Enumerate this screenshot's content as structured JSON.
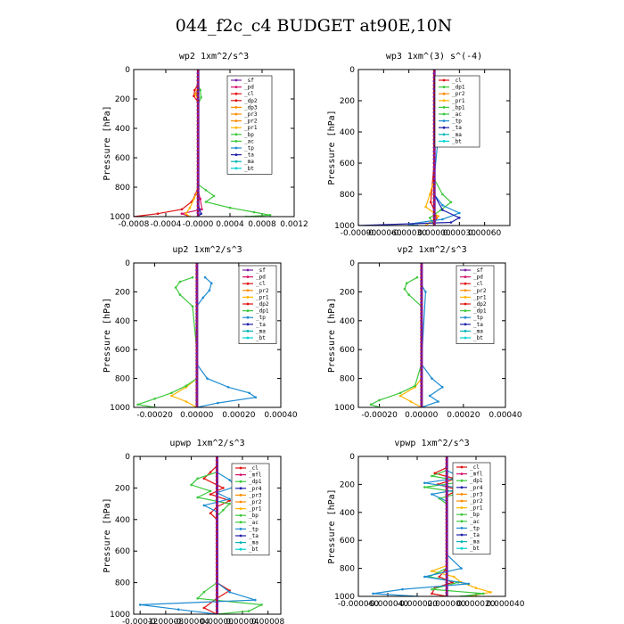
{
  "figure": {
    "title": "044_f2c_c4  BUDGET at90E,10N"
  },
  "chart_data": [
    {
      "type": "line",
      "title": "wp2   1xm^2/s^3",
      "ylabel": "Pressure [hPa]",
      "xlim": [
        -0.0008,
        0.0012
      ],
      "xticks": [
        "-0.0008",
        "-0.0004",
        "-0.0000",
        "0.0004",
        "0.0008",
        "0.0012"
      ],
      "ylim": [
        1000,
        0
      ],
      "yticks": [
        "0",
        "200",
        "400",
        "600",
        "800",
        "1000"
      ],
      "legend": [
        "_sf",
        "_pd",
        "_cl",
        "_dp2",
        "_dp3",
        "_pr3",
        "_pr2",
        "_pr1",
        "_bp",
        "_ac",
        "_tp",
        "_ta",
        "_ma",
        "_bt"
      ],
      "series": [
        {
          "label": "_pd",
          "color": "#d4146a",
          "p": [
            120,
            160,
            200,
            600,
            820,
            880,
            950,
            980,
            1000
          ],
          "v": [
            0,
            -2e-05,
            0,
            0,
            0,
            3e-05,
            5e-05,
            -0.0002,
            -0.0001
          ]
        },
        {
          "label": "_cl",
          "color": "#e01010",
          "p": [
            100,
            140,
            180,
            220,
            800,
            850,
            900,
            950,
            980,
            1000
          ],
          "v": [
            0,
            -4e-05,
            -5e-05,
            0,
            0,
            -3e-05,
            -8e-05,
            -0.0002,
            -0.0005,
            -0.0008
          ]
        },
        {
          "label": "_pr1",
          "color": "#ffb400",
          "p": [
            120,
            170,
            200,
            820,
            880,
            940,
            980,
            1000
          ],
          "v": [
            0,
            -3e-05,
            0,
            0,
            -5e-05,
            -0.0001,
            -0.00015,
            -0.0001
          ]
        },
        {
          "label": "_bp",
          "color": "#3cc83c",
          "p": [
            100,
            140,
            190,
            240,
            780,
            820,
            860,
            900,
            940,
            970,
            990,
            1000
          ],
          "v": [
            0,
            3e-05,
            4e-05,
            0,
            0,
            0.0001,
            0.0002,
            0.0001,
            0.0004,
            0.0007,
            0.0009,
            0.0006
          ]
        },
        {
          "label": "_ta",
          "color": "#1f1fa8",
          "p": [
            900,
            950,
            980,
            1000
          ],
          "v": [
            0,
            2e-05,
            4e-05,
            0
          ]
        }
      ]
    },
    {
      "type": "line",
      "title": "wp3   1xm^(3) s^(-4)",
      "ylabel": "Pressure [hPa]",
      "xlim": [
        -0.0009,
        0.0009
      ],
      "xticks": [
        "-0.00090",
        "-0.00060",
        "-0.00030",
        "0.00000",
        "0.00030",
        "0.00060"
      ],
      "ylim": [
        1000,
        0
      ],
      "yticks": [
        "0",
        "200",
        "400",
        "600",
        "800",
        "1000"
      ],
      "legend": [
        "_cl",
        "_dp1",
        "_pr2",
        "_pr1",
        "_bp1",
        "_ac",
        "_tp",
        "_ta",
        "_ma",
        "_bt"
      ],
      "series": [
        {
          "label": "_cl",
          "color": "#e01010",
          "p": [
            100,
            600,
            850,
            900,
            950,
            1000
          ],
          "v": [
            0,
            0,
            -4e-05,
            0,
            3e-05,
            0
          ]
        },
        {
          "label": "_pr1",
          "color": "#ffb400",
          "p": [
            700,
            800,
            880,
            940,
            1000
          ],
          "v": [
            0,
            -5e-05,
            -0.0001,
            5e-05,
            -0.0001
          ]
        },
        {
          "label": "_bp1",
          "color": "#3cc83c",
          "p": [
            120,
            160,
            200,
            700,
            800,
            850,
            900,
            950,
            1000
          ],
          "v": [
            0,
            4e-05,
            0,
            0,
            0.0001,
            0.0002,
            8e-05,
            -5e-05,
            0
          ]
        },
        {
          "label": "_tp",
          "color": "#1e8cd2",
          "p": [
            120,
            150,
            700,
            800,
            870,
            920,
            960,
            990,
            1000
          ],
          "v": [
            0,
            0.0001,
            0,
            0,
            0.0001,
            0.0003,
            0.0001,
            -0.0003,
            -0.0002
          ]
        },
        {
          "label": "_ta",
          "color": "#1f1fa8",
          "p": [
            800,
            900,
            950,
            980,
            1000
          ],
          "v": [
            0,
            0.0001,
            0.0003,
            0.0002,
            -0.0009
          ]
        }
      ]
    },
    {
      "type": "line",
      "title": "up2   1xm^2/s^3",
      "ylabel": "Pressure [hPa]",
      "xlim": [
        -0.0003,
        0.0004
      ],
      "xticks": [
        "-0.00020",
        "0.00000",
        "0.00020",
        "0.00040"
      ],
      "ylim": [
        1000,
        0
      ],
      "yticks": [
        "0",
        "200",
        "400",
        "600",
        "800",
        "1000"
      ],
      "legend": [
        "_sf",
        "_pd",
        "_cl",
        "_pr2",
        "_pr1",
        "_dp2",
        "_dp1",
        "_tp",
        "_ta",
        "_ma",
        "_bt"
      ],
      "series": [
        {
          "label": "_pd",
          "color": "#d4146a",
          "p": [
            100,
            1000
          ],
          "v": [
            0,
            0
          ]
        },
        {
          "label": "_pr1",
          "color": "#ffb400",
          "p": [
            800,
            860,
            920,
            960,
            1000
          ],
          "v": [
            0,
            -5e-05,
            -0.00012,
            -5e-05,
            0
          ]
        },
        {
          "label": "_dp2",
          "color": "#3cc83c",
          "p": [
            100,
            130,
            170,
            220,
            300,
            600,
            800,
            850,
            900,
            940,
            980,
            1000
          ],
          "v": [
            -2e-05,
            -8e-05,
            -0.0001,
            -8e-05,
            -2e-05,
            0,
            0,
            -5e-05,
            -0.00012,
            -0.0002,
            -0.00028,
            -0.0002
          ]
        },
        {
          "label": "_tp",
          "color": "#1e8cd2",
          "p": [
            100,
            140,
            190,
            240,
            300,
            700,
            800,
            860,
            900,
            930,
            970,
            1000
          ],
          "v": [
            4e-05,
            7e-05,
            6e-05,
            3e-05,
            0,
            0,
            5e-05,
            0.00015,
            0.00025,
            0.00028,
            0.0001,
            0
          ]
        },
        {
          "label": "_ma",
          "color": "#00b4b4",
          "p": [
            900,
            1000
          ],
          "v": [
            0,
            0
          ]
        }
      ]
    },
    {
      "type": "line",
      "title": "vp2   1xm^2/s^3",
      "ylabel": "Pressure [hPa]",
      "xlim": [
        -0.0003,
        0.0004
      ],
      "xticks": [
        "-0.00020",
        "0.00000",
        "0.00020",
        "0.00040"
      ],
      "ylim": [
        1000,
        0
      ],
      "yticks": [
        "0",
        "200",
        "400",
        "600",
        "800",
        "1000"
      ],
      "legend": [
        "_sf",
        "_pd",
        "_cl",
        "_pr2",
        "_pr1",
        "_dp2",
        "_dp1",
        "_tp",
        "_ta",
        "_ma",
        "_bt"
      ],
      "series": [
        {
          "label": "_pd",
          "color": "#d4146a",
          "p": [
            100,
            1000
          ],
          "v": [
            0,
            0
          ]
        },
        {
          "label": "_pr1",
          "color": "#ffb400",
          "p": [
            800,
            860,
            920,
            960,
            1000
          ],
          "v": [
            0,
            -3e-05,
            -0.0001,
            -5e-05,
            0
          ]
        },
        {
          "label": "_dp2",
          "color": "#3cc83c",
          "p": [
            100,
            140,
            180,
            220,
            300,
            700,
            850,
            900,
            950,
            980,
            1000
          ],
          "v": [
            -2e-05,
            -7e-05,
            -8e-05,
            -6e-05,
            0,
            0,
            -3e-05,
            -0.0001,
            -0.0002,
            -0.00024,
            -0.0002
          ]
        },
        {
          "label": "_tp",
          "color": "#1e8cd2",
          "p": [
            150,
            200,
            700,
            800,
            860,
            920,
            960,
            1000
          ],
          "v": [
            0,
            2e-05,
            0,
            5e-05,
            0.0001,
            4e-05,
            8e-05,
            0
          ]
        }
      ]
    },
    {
      "type": "line",
      "title": "upwp   1xm^2/s^3",
      "ylabel": "Pressure [hPa]",
      "xlim": [
        -0.00013,
        0.0001
      ],
      "xticks": [
        "-0.00012",
        "-0.00008",
        "-0.00004",
        "0.00000",
        "0.00004",
        "0.00008"
      ],
      "ylim": [
        1000,
        0
      ],
      "yticks": [
        "0",
        "200",
        "400",
        "600",
        "800",
        "1000"
      ],
      "legend": [
        "_cl",
        "_mfl",
        "_dp1",
        "_pr4",
        "_pr3",
        "_pr2",
        "_pr1",
        "_bp",
        "_ac",
        "_tp",
        "_ta",
        "_ma",
        "_bt"
      ],
      "series": [
        {
          "label": "_cl",
          "color": "#e01010",
          "p": [
            60,
            100,
            140,
            200,
            240,
            280,
            320,
            360,
            400,
            800,
            850,
            900,
            960,
            1000
          ],
          "v": [
            0,
            -1e-05,
            -2e-05,
            1e-05,
            -1e-05,
            2e-05,
            0,
            -1e-05,
            0,
            0,
            2e-05,
            0,
            -2e-05,
            0
          ]
        },
        {
          "label": "_dp1",
          "color": "#1f1fa8",
          "p": [
            60,
            400,
            700,
            1000
          ],
          "v": [
            0,
            0,
            0,
            0
          ]
        },
        {
          "label": "_bp",
          "color": "#3cc83c",
          "p": [
            100,
            140,
            180,
            220,
            260,
            300,
            340,
            380,
            800,
            860,
            900,
            940,
            980,
            1000
          ],
          "v": [
            0,
            -3e-05,
            -4e-05,
            -1e-05,
            -3e-05,
            2e-05,
            1e-05,
            0,
            0,
            -2e-05,
            -3e-05,
            7e-05,
            5e-05,
            0
          ]
        },
        {
          "label": "_tp",
          "color": "#1e8cd2",
          "p": [
            100,
            150,
            190,
            230,
            270,
            310,
            350,
            390,
            800,
            860,
            910,
            940,
            970,
            1000
          ],
          "v": [
            0,
            2e-05,
            3e-05,
            0,
            2e-05,
            -2e-05,
            0,
            0,
            0,
            2e-05,
            6e-05,
            -0.00012,
            -6e-05,
            0
          ]
        },
        {
          "label": "_ma",
          "color": "#00b4b4",
          "p": [
            100,
            1000
          ],
          "v": [
            0,
            0
          ]
        }
      ]
    },
    {
      "type": "line",
      "title": "vpwp   1xm^2/s^3",
      "ylabel": "Pressure [hPa]",
      "xlim": [
        -6e-05,
        4e-05
      ],
      "xticks": [
        "-0.000060",
        "-0.000040",
        "-0.000020",
        "0.000000",
        "0.000020",
        "0.000040"
      ],
      "ylim": [
        1000,
        0
      ],
      "yticks": [
        "0",
        "200",
        "400",
        "600",
        "800",
        "1000"
      ],
      "legend": [
        "_cl",
        "_mfl",
        "_dp1",
        "_pr4",
        "_pr3",
        "_pr2",
        "_pr1",
        "_bp",
        "_ac",
        "_tp",
        "_ta",
        "_ma",
        "_bt"
      ],
      "series": [
        {
          "label": "_cl",
          "color": "#e01010",
          "p": [
            80,
            120,
            160,
            200,
            240,
            280,
            400,
            800,
            860,
            900,
            940,
            980,
            1000
          ],
          "v": [
            0,
            -8e-06,
            6e-06,
            -6e-06,
            8e-06,
            0,
            0,
            0,
            -5e-06,
            4e-06,
            -8e-06,
            -1e-05,
            0
          ]
        },
        {
          "label": "_dp1",
          "color": "#1f1fa8",
          "p": [
            80,
            1000
          ],
          "v": [
            0,
            0
          ]
        },
        {
          "label": "_pr1",
          "color": "#ffb400",
          "p": [
            780,
            820,
            860,
            900,
            940,
            970,
            1000
          ],
          "v": [
            0,
            -1e-05,
            5e-06,
            1e-05,
            2e-05,
            3e-05,
            1.5e-05
          ]
        },
        {
          "label": "_bp",
          "color": "#3cc83c",
          "p": [
            100,
            140,
            180,
            220,
            260,
            300,
            340,
            800,
            860,
            900,
            950,
            980,
            1000
          ],
          "v": [
            0,
            -1e-05,
            1.2e-05,
            -1.5e-05,
            1e-05,
            -5e-06,
            0,
            0,
            -1.2e-05,
            8e-06,
            -1e-05,
            2.5e-05,
            1e-05
          ]
        },
        {
          "label": "_tp",
          "color": "#1e8cd2",
          "p": [
            100,
            150,
            190,
            230,
            270,
            320,
            700,
            800,
            860,
            910,
            950,
            980,
            1000
          ],
          "v": [
            0,
            1e-05,
            -1.5e-05,
            1.2e-05,
            -1e-05,
            0,
            0,
            1e-05,
            -1.5e-05,
            1.5e-05,
            -3e-05,
            -5e-05,
            -2e-05
          ]
        },
        {
          "label": "_ma",
          "color": "#00b4b4",
          "p": [
            100,
            1000
          ],
          "v": [
            0,
            0
          ]
        }
      ]
    }
  ],
  "legend_colors": {
    "_sf": "#7b1fa2",
    "_pd": "#d4146a",
    "_mfl": "#d4146a",
    "_cl": "#e01010",
    "_dp2": "#e01010",
    "_dp3": "#ff8c00",
    "_dp1": "#3cc83c",
    "_pr4": "#1f1fa8",
    "_pr3": "#ff8c00",
    "_pr2": "#ff8c00",
    "_pr1": "#ffb400",
    "_bp": "#3cc83c",
    "_bp1": "#3cc83c",
    "_ac": "#3cc83c",
    "_tp": "#1e8cd2",
    "_ta": "#1f1fa8",
    "_ma": "#00b4b4",
    "_bt": "#00d2d2"
  }
}
